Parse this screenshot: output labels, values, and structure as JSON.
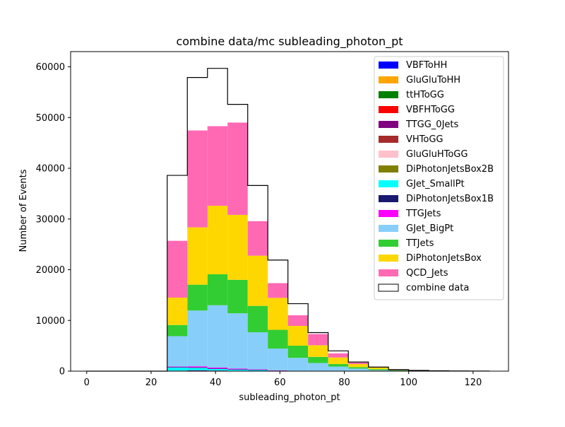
{
  "chart_data": {
    "type": "bar",
    "stacked": true,
    "title": "combine data/mc subleading_photon_pt",
    "xlabel": "subleading_photon_pt",
    "ylabel": "Number of Events",
    "xlim": [
      -5,
      131
    ],
    "ylim": [
      0,
      63000
    ],
    "xticks": [
      0,
      20,
      40,
      60,
      80,
      100,
      120
    ],
    "yticks": [
      0,
      10000,
      20000,
      30000,
      40000,
      50000,
      60000
    ],
    "xtick_labels": [
      "0",
      "20",
      "40",
      "60",
      "80",
      "100",
      "120"
    ],
    "ytick_labels": [
      "0",
      "10000",
      "20000",
      "30000",
      "40000",
      "50000",
      "60000"
    ],
    "grid": false,
    "legend_position": "top-right",
    "bin_edges": [
      0,
      6.25,
      12.5,
      18.75,
      25,
      31.25,
      37.5,
      43.75,
      50,
      56.25,
      62.5,
      68.75,
      75,
      81.25,
      87.5,
      93.75,
      100,
      106.25,
      112.5,
      118.75,
      125
    ],
    "series": [
      {
        "name": "VBFToHH",
        "color": "#0000ff",
        "values": [
          0,
          0,
          0,
          0,
          0,
          0,
          0,
          0,
          0,
          0,
          0,
          0,
          0,
          0,
          0,
          0,
          0,
          0,
          0,
          0
        ]
      },
      {
        "name": "GluGluToHH",
        "color": "#ffa500",
        "values": [
          0,
          0,
          0,
          0,
          0,
          0,
          0,
          0,
          0,
          0,
          0,
          0,
          0,
          0,
          0,
          0,
          0,
          0,
          0,
          0
        ]
      },
      {
        "name": "ttHToGG",
        "color": "#008000",
        "values": [
          0,
          0,
          0,
          0,
          0,
          0,
          0,
          0,
          0,
          0,
          0,
          0,
          0,
          0,
          0,
          0,
          0,
          0,
          0,
          0
        ]
      },
      {
        "name": "VBFHToGG",
        "color": "#ff0000",
        "values": [
          0,
          0,
          0,
          0,
          0,
          0,
          0,
          0,
          0,
          0,
          0,
          0,
          0,
          0,
          0,
          0,
          0,
          0,
          0,
          0
        ]
      },
      {
        "name": "TTGG_0Jets",
        "color": "#800080",
        "values": [
          0,
          0,
          0,
          0,
          100,
          150,
          120,
          80,
          60,
          20,
          0,
          0,
          0,
          0,
          0,
          0,
          0,
          0,
          0,
          0
        ]
      },
      {
        "name": "VHToGG",
        "color": "#a52a2a",
        "values": [
          0,
          0,
          0,
          0,
          0,
          0,
          0,
          0,
          0,
          0,
          0,
          0,
          0,
          0,
          0,
          0,
          0,
          0,
          0,
          0
        ]
      },
      {
        "name": "GluGluHToGG",
        "color": "#ffc0cb",
        "values": [
          0,
          0,
          0,
          0,
          0,
          0,
          0,
          0,
          0,
          0,
          0,
          0,
          0,
          0,
          0,
          0,
          0,
          0,
          0,
          0
        ]
      },
      {
        "name": "DiPhotonJetsBox2B",
        "color": "#808000",
        "values": [
          0,
          0,
          0,
          0,
          0,
          0,
          0,
          0,
          0,
          0,
          0,
          0,
          0,
          0,
          0,
          0,
          0,
          0,
          0,
          0
        ]
      },
      {
        "name": "GJet_SmallPt",
        "color": "#00ffff",
        "values": [
          0,
          0,
          0,
          0,
          600,
          500,
          300,
          200,
          150,
          50,
          0,
          0,
          0,
          0,
          0,
          0,
          0,
          0,
          0,
          0
        ]
      },
      {
        "name": "DiPhotonJetsBox1B",
        "color": "#191970",
        "values": [
          0,
          0,
          0,
          0,
          100,
          100,
          100,
          80,
          60,
          30,
          0,
          0,
          0,
          0,
          0,
          0,
          0,
          0,
          0,
          0
        ]
      },
      {
        "name": "TTGJets",
        "color": "#ff00ff",
        "values": [
          0,
          0,
          0,
          0,
          100,
          200,
          180,
          150,
          100,
          50,
          20,
          10,
          0,
          0,
          0,
          0,
          0,
          0,
          0,
          0
        ]
      },
      {
        "name": "GJet_BigPt",
        "color": "#87cefa",
        "values": [
          0,
          0,
          0,
          0,
          6000,
          11000,
          12300,
          10900,
          7300,
          4300,
          2600,
          1600,
          900,
          500,
          200,
          100,
          50,
          30,
          10,
          5
        ]
      },
      {
        "name": "TTJets",
        "color": "#32cd32",
        "values": [
          0,
          0,
          0,
          0,
          2200,
          5100,
          6100,
          6600,
          5200,
          3700,
          2400,
          1200,
          500,
          300,
          200,
          100,
          50,
          20,
          10,
          5
        ]
      },
      {
        "name": "DiPhotonJetsBox",
        "color": "#ffd700",
        "values": [
          0,
          0,
          0,
          0,
          5400,
          11300,
          13500,
          12800,
          9900,
          6300,
          3900,
          2300,
          1300,
          600,
          300,
          150,
          80,
          40,
          20,
          10
        ]
      },
      {
        "name": "QCD_Jets",
        "color": "#ff69b4",
        "values": [
          0,
          0,
          0,
          0,
          11200,
          19100,
          15700,
          18200,
          6800,
          2900,
          2100,
          2200,
          800,
          300,
          100,
          50,
          20,
          10,
          5,
          0
        ]
      }
    ],
    "data": {
      "name": "combine data",
      "values": [
        0,
        0,
        0,
        0,
        38600,
        57900,
        59700,
        52600,
        36600,
        21900,
        13300,
        7600,
        4000,
        1800,
        800,
        300,
        150,
        80,
        40,
        20
      ]
    }
  }
}
